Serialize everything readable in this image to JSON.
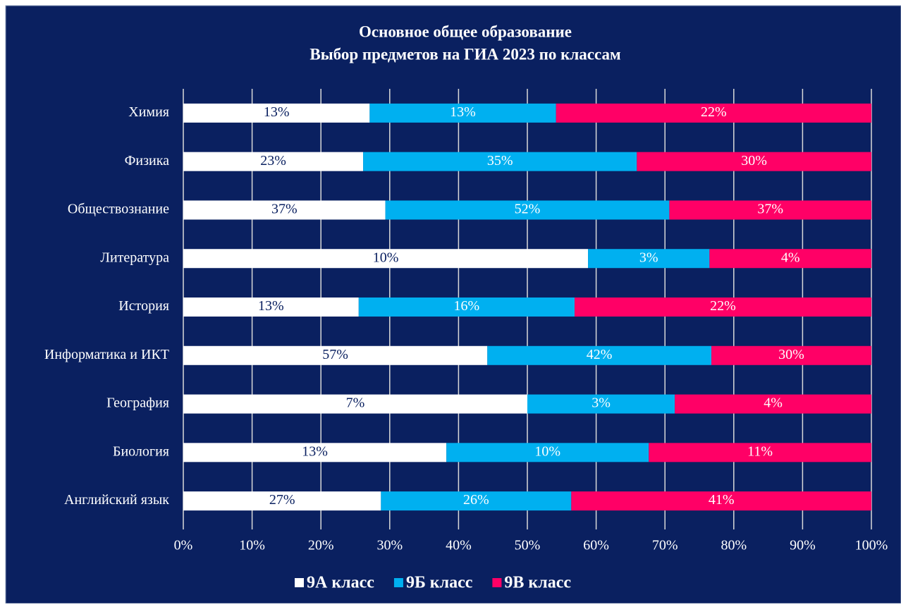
{
  "chart_data": {
    "type": "bar100h",
    "title": [
      "Основное общее образование",
      "Выбор предметов на ГИА 2023 по классам"
    ],
    "categories": [
      "Химия",
      "Физика",
      "Обществознание",
      "Литература",
      "История",
      "Информатика и ИКТ",
      "География",
      "Биология",
      "Английский язык"
    ],
    "series": [
      {
        "name": "9А класс",
        "color": "#ffffff",
        "label_color": "#0a2060",
        "values": [
          13,
          23,
          37,
          10,
          13,
          57,
          7,
          13,
          27
        ],
        "value_labels": [
          "13%",
          "23%",
          "37%",
          "10%",
          "13%",
          "57%",
          "7%",
          "13%",
          "27%"
        ]
      },
      {
        "name": "9Б класс",
        "color": "#00b0f0",
        "label_color": "#ffffff",
        "values": [
          13,
          35,
          52,
          3,
          16,
          42,
          3,
          10,
          26
        ],
        "value_labels": [
          "13%",
          "35%",
          "52%",
          "3%",
          "16%",
          "42%",
          "3%",
          "10%",
          "26%"
        ]
      },
      {
        "name": "9В класс",
        "color": "#ff0066",
        "label_color": "#ffffff",
        "values": [
          22,
          30,
          37,
          4,
          22,
          30,
          4,
          11,
          41
        ],
        "value_labels": [
          "22%",
          "30%",
          "37%",
          "4%",
          "22%",
          "30%",
          "4%",
          "11%",
          "41%"
        ]
      }
    ],
    "xlim": [
      0,
      100
    ],
    "xticks": [
      {
        "value": 0,
        "label": "0%"
      },
      {
        "value": 10,
        "label": "10%"
      },
      {
        "value": 20,
        "label": "20%"
      },
      {
        "value": 30,
        "label": "30%"
      },
      {
        "value": 40,
        "label": "40%"
      },
      {
        "value": 50,
        "label": "50%"
      },
      {
        "value": 60,
        "label": "60%"
      },
      {
        "value": 70,
        "label": "70%"
      },
      {
        "value": 80,
        "label": "80%"
      },
      {
        "value": 90,
        "label": "90%"
      },
      {
        "value": 100,
        "label": "100%"
      }
    ],
    "grid": true,
    "legend": "bottom",
    "background": "#0a2060"
  }
}
